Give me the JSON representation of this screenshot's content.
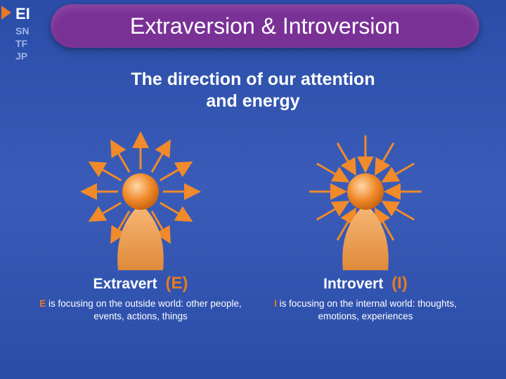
{
  "background_gradient": [
    "#2a4da8",
    "#3a5cb8",
    "#2a4da8"
  ],
  "accent_color": "#e87a1f",
  "pill_color": "#7a3196",
  "nav": {
    "items": [
      "EI",
      "SN",
      "TF",
      "JP"
    ],
    "active_index": 0,
    "active_fontsize": 22,
    "inactive_fontsize": 14,
    "active_color": "#ffffff",
    "inactive_color": "#9fb3e8"
  },
  "title": "Extraversion & Introversion",
  "title_fontsize": 32,
  "subtitle": "The direction of our attention\nand energy",
  "subtitle_fontsize": 25,
  "columns": {
    "left": {
      "type": "infographic",
      "direction": "out",
      "heading_word": "Extravert",
      "heading_letter": "(E)",
      "desc_lead": "E",
      "desc_rest": " is focusing on the outside world: other people, events, actions, things",
      "head_color": "#f08a2a",
      "body_color": "#f1a35a",
      "arrow_color": "#f08a2a",
      "arrow_count": 12
    },
    "right": {
      "type": "infographic",
      "direction": "in",
      "heading_word": "Introvert",
      "heading_letter": "(I)",
      "desc_lead": "I",
      "desc_rest": " is focusing on the internal world: thoughts, emotions, experiences",
      "head_color": "#f08a2a",
      "body_color": "#f1a35a",
      "arrow_color": "#f08a2a",
      "arrow_count": 12
    }
  },
  "heading_fontsize": 21,
  "letter_fontsize": 24,
  "desc_fontsize": 13.5
}
